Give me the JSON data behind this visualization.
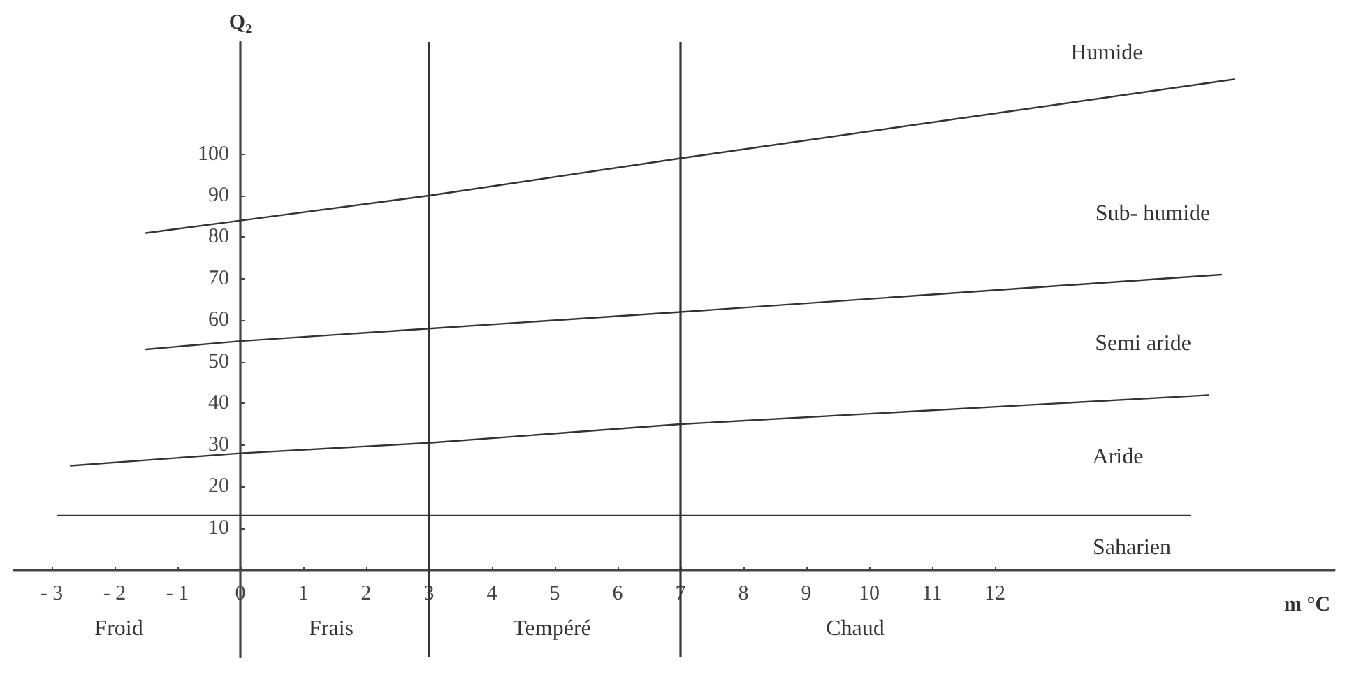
{
  "chart_data": {
    "type": "line",
    "xlabel": "m °C",
    "ylabel": "Q₂",
    "xlim": [
      -3.6,
      17.4
    ],
    "ylim": [
      -21,
      127
    ],
    "xticks": [
      -3,
      -2,
      -1,
      0,
      1,
      2,
      3,
      4,
      5,
      6,
      7,
      8,
      9,
      10,
      11,
      12
    ],
    "yticks": [
      10,
      20,
      30,
      40,
      50,
      60,
      70,
      80,
      90,
      100
    ],
    "series": [
      {
        "color": "#333333",
        "x": [
          -1.5,
          0,
          3,
          7,
          15.8
        ],
        "values": [
          81,
          84,
          90,
          99,
          118
        ]
      },
      {
        "color": "#333333",
        "x": [
          -1.5,
          0,
          3,
          7,
          15.6
        ],
        "values": [
          53,
          55,
          58,
          62,
          71
        ]
      },
      {
        "color": "#333333",
        "x": [
          -2.7,
          0,
          3,
          7,
          15.4
        ],
        "values": [
          25,
          28,
          30.5,
          35,
          42
        ]
      },
      {
        "color": "#333333",
        "x": [
          -2.9,
          15.1
        ],
        "values": [
          13,
          13
        ]
      }
    ],
    "ref_lines": [
      {
        "axis": "x",
        "value": 3,
        "color": "#333333"
      },
      {
        "axis": "x",
        "value": 7,
        "color": "#333333"
      }
    ],
    "annotations": [
      "Humide",
      "Sub- humide",
      "Semi aride",
      "Aride",
      "Saharien",
      "Froid",
      "Frais",
      "Tempéré",
      "Chaud"
    ],
    "grid": false,
    "marker": "none",
    "line_style": "solid"
  }
}
